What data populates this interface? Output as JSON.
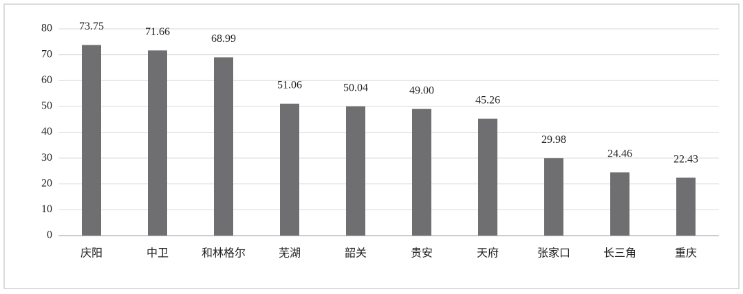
{
  "chart_data": {
    "type": "bar",
    "categories": [
      "庆阳",
      "中卫",
      "和林格尔",
      "芜湖",
      "韶关",
      "贵安",
      "天府",
      "张家口",
      "长三角",
      "重庆"
    ],
    "values": [
      73.75,
      71.66,
      68.99,
      51.06,
      50.04,
      49.0,
      45.26,
      29.98,
      24.46,
      22.43
    ],
    "value_labels": [
      "73.75",
      "71.66",
      "68.99",
      "51.06",
      "50.04",
      "49.00",
      "45.26",
      "29.98",
      "24.46",
      "22.43"
    ],
    "color": "#6f6f72",
    "ylim": [
      0,
      80
    ],
    "yticks": [
      0,
      10,
      20,
      30,
      40,
      50,
      60,
      70,
      80
    ],
    "grid": true
  }
}
